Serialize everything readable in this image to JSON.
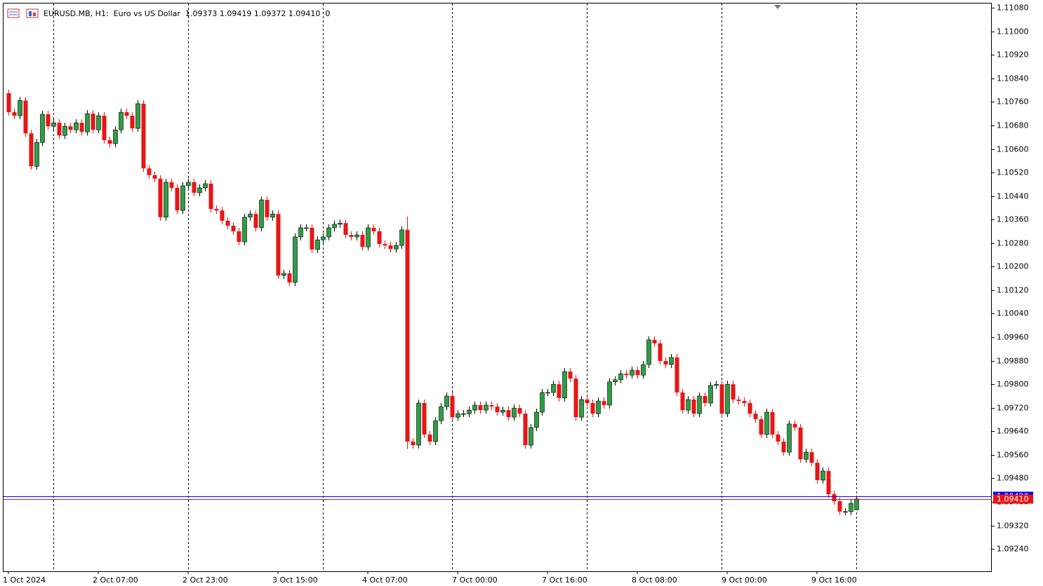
{
  "chart_data": {
    "type": "candlestick",
    "title": "EURUSD.MB, H1:  Euro vs US Dollar  1.09373 1.09419 1.09372 1.09410  0",
    "up_color": "#2e9e44",
    "down_color": "#e81515",
    "ylim": [
      1.09164,
      1.11097
    ],
    "yticks": [
      {
        "value": 1.1108,
        "label": "1.11080"
      },
      {
        "value": 1.11,
        "label": "1.11000"
      },
      {
        "value": 1.1092,
        "label": "1.10920"
      },
      {
        "value": 1.1084,
        "label": "1.10840"
      },
      {
        "value": 1.1076,
        "label": "1.10760"
      },
      {
        "value": 1.1068,
        "label": "1.10680"
      },
      {
        "value": 1.106,
        "label": "1.10600"
      },
      {
        "value": 1.1052,
        "label": "1.10520"
      },
      {
        "value": 1.1044,
        "label": "1.10440"
      },
      {
        "value": 1.1036,
        "label": "1.10360"
      },
      {
        "value": 1.1028,
        "label": "1.10280"
      },
      {
        "value": 1.102,
        "label": "1.10200"
      },
      {
        "value": 1.1012,
        "label": "1.10120"
      },
      {
        "value": 1.1004,
        "label": "1.10040"
      },
      {
        "value": 1.0996,
        "label": "1.09960"
      },
      {
        "value": 1.0988,
        "label": "1.09880"
      },
      {
        "value": 1.098,
        "label": "1.09800"
      },
      {
        "value": 1.0972,
        "label": "1.09720"
      },
      {
        "value": 1.0964,
        "label": "1.09640"
      },
      {
        "value": 1.0956,
        "label": "1.09560"
      },
      {
        "value": 1.0948,
        "label": "1.09480"
      },
      {
        "value": 1.094,
        "label": "1.09400"
      },
      {
        "value": 1.0932,
        "label": "1.09320"
      },
      {
        "value": 1.0924,
        "label": "1.09240"
      }
    ],
    "price_lines": [
      {
        "value": 1.0942,
        "label": "1.09420",
        "color": "#0000ff"
      },
      {
        "value": 1.0941,
        "label": "1.09410",
        "color": "#e81515"
      }
    ],
    "categories": [
      "1 Oct 2024",
      null,
      null,
      null,
      null,
      null,
      null,
      null,
      null,
      null,
      null,
      null,
      null,
      null,
      null,
      null,
      "2 Oct 07:00",
      null,
      null,
      null,
      null,
      null,
      null,
      null,
      null,
      null,
      null,
      null,
      null,
      null,
      null,
      null,
      "2 Oct 23:00",
      null,
      null,
      null,
      null,
      null,
      null,
      null,
      null,
      null,
      null,
      null,
      null,
      null,
      null,
      null,
      "3 Oct 15:00",
      null,
      null,
      null,
      null,
      null,
      null,
      null,
      null,
      null,
      null,
      null,
      null,
      null,
      null,
      null,
      "4 Oct 07:00",
      null,
      null,
      null,
      null,
      null,
      null,
      null,
      null,
      null,
      null,
      null,
      null,
      null,
      null,
      null,
      "7 Oct 00:00",
      null,
      null,
      null,
      null,
      null,
      null,
      null,
      null,
      null,
      null,
      null,
      null,
      null,
      null,
      null,
      "7 Oct 16:00",
      null,
      null,
      null,
      null,
      null,
      null,
      null,
      null,
      null,
      null,
      null,
      null,
      null,
      null,
      null,
      "8 Oct 08:00",
      null,
      null,
      null,
      null,
      null,
      null,
      null,
      null,
      null,
      null,
      null,
      null,
      null,
      null,
      null,
      "9 Oct 00:00",
      null,
      null,
      null,
      null,
      null,
      null,
      null,
      null,
      null,
      null,
      null,
      null,
      null,
      null,
      null,
      "9 Oct 16:00",
      null,
      null,
      null,
      null,
      null,
      null,
      null
    ],
    "open": [
      1.1079,
      1.10725,
      1.10713,
      1.10765,
      1.10653,
      1.10541,
      1.10622,
      1.10718,
      1.10677,
      1.10689,
      1.10646,
      1.10677,
      1.10665,
      1.10689,
      1.10658,
      1.1072,
      1.10665,
      1.10713,
      1.1063,
      1.10618,
      1.10665,
      1.10725,
      1.10713,
      1.1067,
      1.10754,
      1.10534,
      1.10511,
      1.10499,
      1.10368,
      1.10487,
      1.10468,
      1.10391,
      1.10475,
      1.10487,
      1.10451,
      1.10468,
      1.10482,
      1.10396,
      1.10391,
      1.10356,
      1.10339,
      1.1032,
      1.10284,
      1.10368,
      1.10379,
      1.10332,
      1.10427,
      1.10368,
      1.10379,
      1.1017,
      1.10177,
      1.10146,
      1.10301,
      1.10332,
      1.10332,
      1.10258,
      1.10291,
      1.10301,
      1.10332,
      1.10344,
      1.10348,
      1.10308,
      1.10301,
      1.10308,
      1.10267,
      1.10332,
      1.1032,
      1.10277,
      1.10272,
      1.1026,
      1.10272,
      1.10325,
      1.09605,
      1.09593,
      1.09736,
      1.09629,
      1.09605,
      1.09676,
      1.09724,
      1.0976,
      1.09688,
      1.097,
      1.097,
      1.09712,
      1.09729,
      1.09712,
      1.09729,
      1.09724,
      1.09705,
      1.09712,
      1.09688,
      1.09719,
      1.097,
      1.09593,
      1.09653,
      1.09705,
      1.09772,
      1.09772,
      1.098,
      1.09753,
      1.09843,
      1.09819,
      1.09688,
      1.09748,
      1.09736,
      1.097,
      1.09743,
      1.09729,
      1.09808,
      1.09815,
      1.09836,
      1.09831,
      1.09848,
      1.09831,
      1.09867,
      1.09951,
      1.09939,
      1.09879,
      1.09867,
      1.09891,
      1.09772,
      1.09712,
      1.09748,
      1.097,
      1.0976,
      1.09736,
      1.09796,
      1.098,
      1.097,
      1.098,
      1.09748,
      1.09743,
      1.09736,
      1.097,
      1.09681,
      1.09629,
      1.09705,
      1.09629,
      1.09605,
      1.09569,
      1.09665,
      1.09653,
      1.09545,
      1.09569,
      1.09533,
      1.09474,
      1.09505,
      1.09426,
      1.09402,
      1.09367,
      1.09367,
      1.09373
    ],
    "high": [
      1.10802,
      1.10737,
      1.10777,
      1.10777,
      1.10665,
      1.10634,
      1.1073,
      1.1073,
      1.10701,
      1.10701,
      1.10689,
      1.10689,
      1.10701,
      1.10701,
      1.10732,
      1.10732,
      1.10725,
      1.10725,
      1.10642,
      1.10677,
      1.10737,
      1.10737,
      1.10725,
      1.10766,
      1.10766,
      1.10546,
      1.10523,
      1.10511,
      1.10499,
      1.10499,
      1.1048,
      1.10487,
      1.10499,
      1.10499,
      1.1048,
      1.10494,
      1.10494,
      1.10408,
      1.10403,
      1.10368,
      1.10351,
      1.10332,
      1.1038,
      1.10391,
      1.10391,
      1.10439,
      1.10439,
      1.10391,
      1.10391,
      1.10189,
      1.10189,
      1.10313,
      1.10344,
      1.10344,
      1.10344,
      1.10303,
      1.10313,
      1.10344,
      1.10356,
      1.1036,
      1.1036,
      1.1032,
      1.1032,
      1.1032,
      1.10344,
      1.10344,
      1.10332,
      1.10289,
      1.10284,
      1.10284,
      1.10337,
      1.1037,
      1.09617,
      1.09748,
      1.09748,
      1.09641,
      1.09688,
      1.09736,
      1.09772,
      1.09772,
      1.09712,
      1.09712,
      1.09724,
      1.09741,
      1.09741,
      1.09741,
      1.09741,
      1.09736,
      1.09724,
      1.09724,
      1.09731,
      1.09731,
      1.09712,
      1.09665,
      1.09717,
      1.09784,
      1.09784,
      1.09812,
      1.09812,
      1.09855,
      1.09855,
      1.09831,
      1.0976,
      1.0976,
      1.09748,
      1.09755,
      1.09755,
      1.0982,
      1.09827,
      1.09848,
      1.09848,
      1.0986,
      1.0986,
      1.09879,
      1.09963,
      1.09963,
      1.09951,
      1.09891,
      1.09903,
      1.09903,
      1.09784,
      1.0976,
      1.0976,
      1.09772,
      1.09772,
      1.09808,
      1.09812,
      1.09812,
      1.09812,
      1.09812,
      1.0976,
      1.09755,
      1.09748,
      1.09712,
      1.09693,
      1.09717,
      1.09717,
      1.09641,
      1.09617,
      1.09677,
      1.09677,
      1.09665,
      1.09581,
      1.09581,
      1.09545,
      1.09517,
      1.09517,
      1.09438,
      1.09414,
      1.09379,
      1.09407,
      1.09419
    ],
    "low": [
      1.10713,
      1.10701,
      1.10701,
      1.10641,
      1.10529,
      1.10529,
      1.1061,
      1.10665,
      1.10665,
      1.10634,
      1.10634,
      1.10653,
      1.10653,
      1.10646,
      1.10646,
      1.10653,
      1.10653,
      1.10618,
      1.10606,
      1.10606,
      1.10653,
      1.10701,
      1.10658,
      1.10658,
      1.10522,
      1.10499,
      1.10487,
      1.10356,
      1.10356,
      1.10456,
      1.10379,
      1.10379,
      1.10463,
      1.10439,
      1.10439,
      1.10456,
      1.10384,
      1.10379,
      1.10344,
      1.10327,
      1.10308,
      1.10272,
      1.10272,
      1.10356,
      1.1032,
      1.1032,
      1.10356,
      1.10356,
      1.10158,
      1.10158,
      1.10134,
      1.10134,
      1.10289,
      1.1032,
      1.10246,
      1.10246,
      1.10279,
      1.10289,
      1.1032,
      1.10332,
      1.10296,
      1.10289,
      1.10289,
      1.10255,
      1.10255,
      1.10308,
      1.10265,
      1.1026,
      1.10248,
      1.10248,
      1.1026,
      1.0958,
      1.09581,
      1.09581,
      1.09617,
      1.09593,
      1.09593,
      1.09664,
      1.09712,
      1.09676,
      1.09676,
      1.09688,
      1.09688,
      1.097,
      1.097,
      1.097,
      1.09712,
      1.09693,
      1.09693,
      1.09676,
      1.09676,
      1.09688,
      1.09581,
      1.09581,
      1.09641,
      1.09693,
      1.0976,
      1.0976,
      1.09741,
      1.09741,
      1.09807,
      1.09676,
      1.09676,
      1.09724,
      1.09688,
      1.09688,
      1.09717,
      1.09717,
      1.09796,
      1.09803,
      1.09819,
      1.09819,
      1.09819,
      1.09819,
      1.09855,
      1.09927,
      1.09867,
      1.09855,
      1.09855,
      1.0976,
      1.097,
      1.097,
      1.09688,
      1.09688,
      1.09724,
      1.09724,
      1.09784,
      1.09688,
      1.09688,
      1.09736,
      1.09731,
      1.09724,
      1.09688,
      1.09669,
      1.09617,
      1.09617,
      1.09617,
      1.09593,
      1.09557,
      1.09557,
      1.09641,
      1.09533,
      1.09533,
      1.09521,
      1.09462,
      1.09462,
      1.09414,
      1.0939,
      1.09355,
      1.09355,
      1.09355,
      1.09372
    ],
    "close": [
      1.10725,
      1.10713,
      1.10765,
      1.10653,
      1.10541,
      1.10622,
      1.10718,
      1.10677,
      1.10689,
      1.10646,
      1.10677,
      1.10665,
      1.10689,
      1.10658,
      1.1072,
      1.10665,
      1.10713,
      1.1063,
      1.10618,
      1.10665,
      1.10725,
      1.10713,
      1.1067,
      1.10754,
      1.10534,
      1.10511,
      1.10499,
      1.10368,
      1.10487,
      1.10468,
      1.10391,
      1.10475,
      1.10487,
      1.10451,
      1.10468,
      1.10482,
      1.10396,
      1.10391,
      1.10356,
      1.10339,
      1.1032,
      1.10284,
      1.10368,
      1.10379,
      1.10332,
      1.10427,
      1.10368,
      1.10379,
      1.1017,
      1.10177,
      1.10146,
      1.10301,
      1.10332,
      1.10332,
      1.10258,
      1.10291,
      1.10301,
      1.10332,
      1.10344,
      1.10348,
      1.10308,
      1.10301,
      1.10308,
      1.10267,
      1.10332,
      1.1032,
      1.10277,
      1.10272,
      1.1026,
      1.10272,
      1.10325,
      1.09605,
      1.09593,
      1.09736,
      1.09629,
      1.09605,
      1.09676,
      1.09724,
      1.0976,
      1.09688,
      1.097,
      1.097,
      1.09712,
      1.09729,
      1.09712,
      1.09729,
      1.09724,
      1.09705,
      1.09712,
      1.09688,
      1.09719,
      1.097,
      1.09593,
      1.09653,
      1.09705,
      1.09772,
      1.09772,
      1.098,
      1.09753,
      1.09843,
      1.09819,
      1.09688,
      1.09748,
      1.09736,
      1.097,
      1.09743,
      1.09729,
      1.09808,
      1.09815,
      1.09836,
      1.09831,
      1.09848,
      1.09831,
      1.09867,
      1.09951,
      1.09939,
      1.09879,
      1.09867,
      1.09891,
      1.09772,
      1.09712,
      1.09748,
      1.097,
      1.0976,
      1.09736,
      1.09796,
      1.098,
      1.097,
      1.098,
      1.09748,
      1.09743,
      1.09736,
      1.097,
      1.09681,
      1.09629,
      1.09705,
      1.09629,
      1.09605,
      1.09569,
      1.09665,
      1.09653,
      1.09545,
      1.09569,
      1.09533,
      1.09474,
      1.09505,
      1.09426,
      1.09402,
      1.09367,
      1.09367,
      1.09395,
      1.0941
    ]
  }
}
